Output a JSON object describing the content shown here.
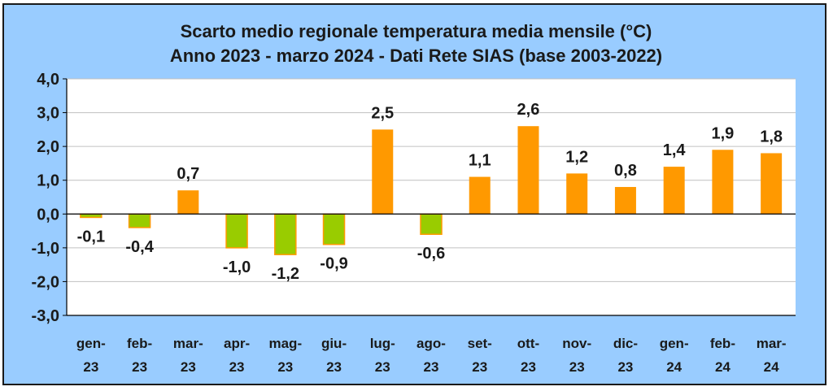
{
  "chart_data": {
    "type": "bar",
    "title": "Scarto medio regionale temperatura media mensile (°C)",
    "subtitle": "Anno 2023 - marzo 2024 - Dati Rete SIAS (base 2003-2022)",
    "categories": [
      [
        "gen-",
        "23"
      ],
      [
        "feb-",
        "23"
      ],
      [
        "mar-",
        "23"
      ],
      [
        "apr-",
        "23"
      ],
      [
        "mag-",
        "23"
      ],
      [
        "giu-",
        "23"
      ],
      [
        "lug-",
        "23"
      ],
      [
        "ago-",
        "23"
      ],
      [
        "set-",
        "23"
      ],
      [
        "ott-",
        "23"
      ],
      [
        "nov-",
        "23"
      ],
      [
        "dic-",
        "23"
      ],
      [
        "gen-",
        "24"
      ],
      [
        "feb-",
        "24"
      ],
      [
        "mar-",
        "24"
      ]
    ],
    "values": [
      -0.1,
      -0.4,
      0.7,
      -1.0,
      -1.2,
      -0.9,
      2.5,
      -0.6,
      1.1,
      2.6,
      1.2,
      0.8,
      1.4,
      1.9,
      1.8
    ],
    "data_labels": [
      "-0,1",
      "-0,4",
      "0,7",
      "-1,0",
      "-1,2",
      "-0,9",
      "2,5",
      "-0,6",
      "1,1",
      "2,6",
      "1,2",
      "0,8",
      "1,4",
      "1,9",
      "1,8"
    ],
    "ylim": [
      -3.0,
      4.0
    ],
    "yticks": [
      4.0,
      3.0,
      2.0,
      1.0,
      0.0,
      -1.0,
      -2.0,
      -3.0
    ],
    "ytick_labels": [
      "4,0",
      "3,0",
      "2,0",
      "1,0",
      "0,0",
      "-1,0",
      "-2,0",
      "-3,0"
    ],
    "grid": true,
    "colors": {
      "positive": "#ff9900",
      "negative": "#99cc00",
      "negative_outline": "#ff9900",
      "plot_background": "#ffffff",
      "outer_background": "#99ccff",
      "gridline": "#c0c0c0",
      "text": "#1a1a1a"
    }
  }
}
